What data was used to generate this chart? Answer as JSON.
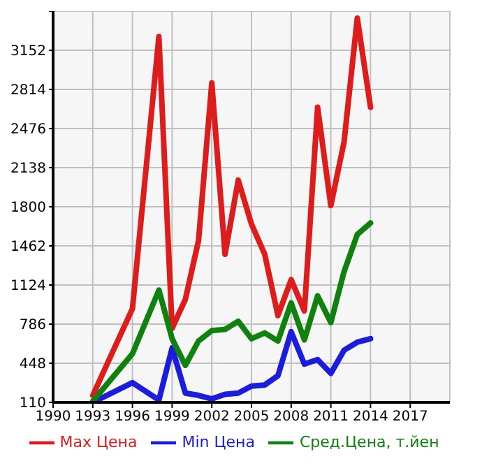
{
  "chart_data": {
    "type": "line",
    "x": [
      1993,
      1996,
      1998,
      1999,
      2000,
      2001,
      2002,
      2003,
      2004,
      2005,
      2006,
      2007,
      2008,
      2009,
      2010,
      2011,
      2012,
      2013,
      2014
    ],
    "series": [
      {
        "name": "Max Цена",
        "color": "#dd1c1c",
        "values": [
          170,
          920,
          3270,
          750,
          1000,
          1510,
          2870,
          1390,
          2030,
          1650,
          1390,
          860,
          1170,
          900,
          2660,
          1810,
          2360,
          3430,
          2660
        ]
      },
      {
        "name": "Min Цена",
        "color": "#1c1cdd",
        "values": [
          110,
          280,
          130,
          580,
          190,
          170,
          140,
          180,
          190,
          250,
          260,
          340,
          720,
          440,
          480,
          360,
          560,
          630,
          660
        ]
      },
      {
        "name": "Сред.Цена, т.йен",
        "color": "#0e810e",
        "values": [
          120,
          530,
          1080,
          660,
          430,
          640,
          730,
          740,
          810,
          660,
          710,
          640,
          970,
          650,
          1030,
          800,
          1240,
          1560,
          1660
        ]
      }
    ],
    "xlim": [
      1990,
      2020
    ],
    "xticks": [
      1990,
      1993,
      1996,
      1999,
      2002,
      2005,
      2008,
      2011,
      2014,
      2017
    ],
    "ylim": [
      110,
      3490
    ],
    "yticks": [
      110,
      448,
      786,
      1124,
      1462,
      1800,
      2138,
      2476,
      2814,
      3152,
      {
        "value": 3490,
        "label": null
      }
    ],
    "grid": true,
    "legend": "bottom",
    "marker": "none",
    "line_style": "solid"
  }
}
